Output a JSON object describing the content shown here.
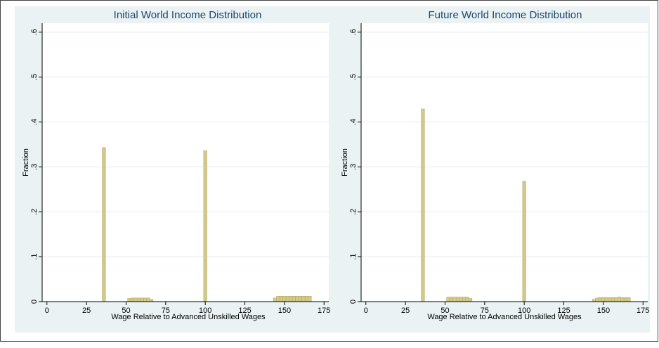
{
  "chart_data": [
    {
      "type": "bar",
      "title": "Initial World Income Distribution",
      "xlabel": "Wage Relative to Advanced Unskilled Wages",
      "ylabel": "Fraction",
      "xlim": [
        -3,
        178
      ],
      "ylim": [
        0,
        0.62
      ],
      "xticks": [
        0,
        25,
        50,
        75,
        100,
        125,
        150,
        175
      ],
      "yticks": [
        0,
        0.1,
        0.2,
        0.3,
        0.4,
        0.5,
        0.6
      ],
      "ytick_labels": [
        "0",
        ".1",
        ".2",
        ".3",
        ".4",
        ".5",
        ".6"
      ],
      "grid": true,
      "bar_color": "#d3c98a",
      "bar_edge_color": "#b3a860",
      "bars": [
        {
          "x": 35,
          "x2": 37,
          "y": 0.343
        },
        {
          "x": 51,
          "x2": 53,
          "y": 0.007
        },
        {
          "x": 53,
          "x2": 55,
          "y": 0.008
        },
        {
          "x": 55,
          "x2": 57,
          "y": 0.008
        },
        {
          "x": 57,
          "x2": 59,
          "y": 0.008
        },
        {
          "x": 59,
          "x2": 61,
          "y": 0.008
        },
        {
          "x": 61,
          "x2": 63,
          "y": 0.008
        },
        {
          "x": 63,
          "x2": 65,
          "y": 0.008
        },
        {
          "x": 65,
          "x2": 67,
          "y": 0.005
        },
        {
          "x": 99,
          "x2": 101,
          "y": 0.336
        },
        {
          "x": 143,
          "x2": 145,
          "y": 0.008
        },
        {
          "x": 145,
          "x2": 147,
          "y": 0.012
        },
        {
          "x": 147,
          "x2": 149,
          "y": 0.012
        },
        {
          "x": 149,
          "x2": 151,
          "y": 0.012
        },
        {
          "x": 151,
          "x2": 153,
          "y": 0.012
        },
        {
          "x": 153,
          "x2": 155,
          "y": 0.012
        },
        {
          "x": 155,
          "x2": 157,
          "y": 0.012
        },
        {
          "x": 157,
          "x2": 159,
          "y": 0.012
        },
        {
          "x": 159,
          "x2": 161,
          "y": 0.012
        },
        {
          "x": 161,
          "x2": 163,
          "y": 0.012
        },
        {
          "x": 163,
          "x2": 165,
          "y": 0.012
        },
        {
          "x": 165,
          "x2": 167,
          "y": 0.012
        }
      ]
    },
    {
      "type": "bar",
      "title": "Future World Income Distribution",
      "xlabel": "Wage Relative to Advanced Unskilled Wages",
      "ylabel": "Fraction",
      "xlim": [
        -3,
        178
      ],
      "ylim": [
        0,
        0.62
      ],
      "xticks": [
        0,
        25,
        50,
        75,
        100,
        125,
        150,
        175
      ],
      "yticks": [
        0,
        0.1,
        0.2,
        0.3,
        0.4,
        0.5,
        0.6
      ],
      "ytick_labels": [
        "0",
        ".1",
        ".2",
        ".3",
        ".4",
        ".5",
        ".6"
      ],
      "grid": true,
      "bar_color": "#d3c98a",
      "bar_edge_color": "#b3a860",
      "bars": [
        {
          "x": 35,
          "x2": 37,
          "y": 0.429
        },
        {
          "x": 51,
          "x2": 53,
          "y": 0.01
        },
        {
          "x": 53,
          "x2": 55,
          "y": 0.01
        },
        {
          "x": 55,
          "x2": 57,
          "y": 0.01
        },
        {
          "x": 57,
          "x2": 59,
          "y": 0.01
        },
        {
          "x": 59,
          "x2": 61,
          "y": 0.01
        },
        {
          "x": 61,
          "x2": 63,
          "y": 0.01
        },
        {
          "x": 63,
          "x2": 65,
          "y": 0.01
        },
        {
          "x": 65,
          "x2": 67,
          "y": 0.007
        },
        {
          "x": 99,
          "x2": 101,
          "y": 0.268
        },
        {
          "x": 143,
          "x2": 145,
          "y": 0.005
        },
        {
          "x": 145,
          "x2": 147,
          "y": 0.008
        },
        {
          "x": 147,
          "x2": 149,
          "y": 0.009
        },
        {
          "x": 149,
          "x2": 151,
          "y": 0.009
        },
        {
          "x": 151,
          "x2": 153,
          "y": 0.009
        },
        {
          "x": 153,
          "x2": 155,
          "y": 0.009
        },
        {
          "x": 155,
          "x2": 157,
          "y": 0.009
        },
        {
          "x": 157,
          "x2": 159,
          "y": 0.009
        },
        {
          "x": 159,
          "x2": 161,
          "y": 0.01
        },
        {
          "x": 161,
          "x2": 163,
          "y": 0.009
        },
        {
          "x": 163,
          "x2": 165,
          "y": 0.009
        },
        {
          "x": 165,
          "x2": 167,
          "y": 0.009
        }
      ]
    }
  ]
}
